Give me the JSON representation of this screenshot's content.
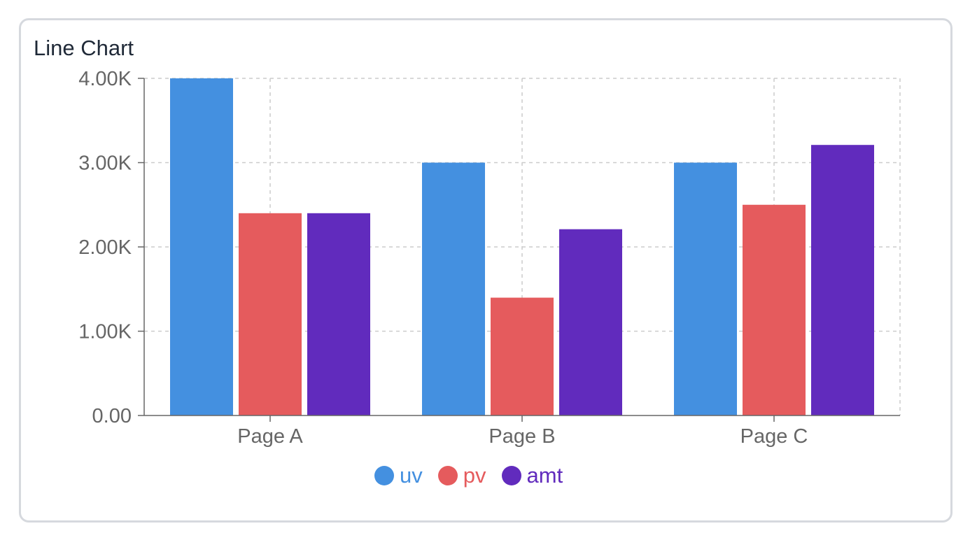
{
  "card": {
    "title": "Line Chart"
  },
  "colors": {
    "uv": "#4490e0",
    "pv": "#e55b5d",
    "amt": "#612bbd"
  },
  "chart_data": {
    "type": "bar",
    "title": "Line Chart",
    "categories": [
      "Page A",
      "Page B",
      "Page C"
    ],
    "series": [
      {
        "name": "uv",
        "values": [
          4000,
          3000,
          3000
        ]
      },
      {
        "name": "pv",
        "values": [
          2400,
          1398,
          2500
        ]
      },
      {
        "name": "amt",
        "values": [
          2400,
          2210,
          3210
        ]
      }
    ],
    "y_ticks": [
      "0.00",
      "1.00K",
      "2.00K",
      "3.00K",
      "4.00K"
    ],
    "ylim": [
      0,
      4000
    ],
    "grid": true,
    "legend_position": "bottom"
  }
}
